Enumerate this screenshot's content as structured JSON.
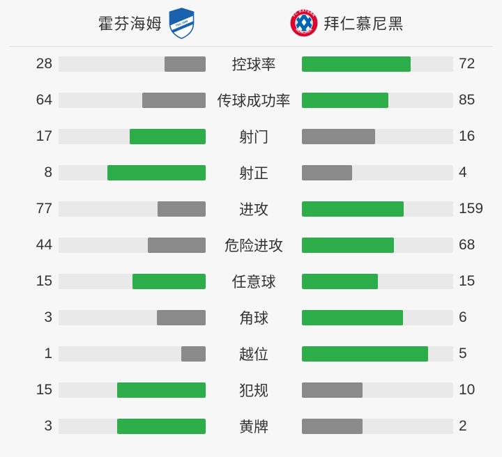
{
  "header": {
    "home_team": {
      "name": "霍芬海姆"
    },
    "away_team": {
      "name": "拜仁慕尼黑"
    }
  },
  "colors": {
    "win_fill": "#2dae4b",
    "lose_fill": "#8a8a8a",
    "track": "#e9e9ea",
    "background": "#f7f7f8",
    "text": "#333333",
    "divider": "#dddddd",
    "hoffenheim_blue": "#1961ac",
    "bayern_red": "#dc052d",
    "bayern_blue": "#0066b2"
  },
  "stats": [
    {
      "label": "控球率",
      "home": 28,
      "away": 72
    },
    {
      "label": "传球成功率",
      "home": 64,
      "away": 85
    },
    {
      "label": "射门",
      "home": 17,
      "away": 16
    },
    {
      "label": "射正",
      "home": 8,
      "away": 4
    },
    {
      "label": "进攻",
      "home": 77,
      "away": 159
    },
    {
      "label": "危险进攻",
      "home": 44,
      "away": 68
    },
    {
      "label": "任意球",
      "home": 15,
      "away": 15
    },
    {
      "label": "角球",
      "home": 3,
      "away": 6
    },
    {
      "label": "越位",
      "home": 1,
      "away": 5
    },
    {
      "label": "犯规",
      "home": 15,
      "away": 10
    },
    {
      "label": "黄牌",
      "home": 3,
      "away": 2
    }
  ],
  "chart_data": {
    "type": "bar",
    "title": "霍芬海姆 vs 拜仁慕尼黑",
    "categories": [
      "控球率",
      "传球成功率",
      "射门",
      "射正",
      "进攻",
      "危险进攻",
      "任意球",
      "角球",
      "越位",
      "犯规",
      "黄牌"
    ],
    "series": [
      {
        "name": "霍芬海姆",
        "values": [
          28,
          64,
          17,
          8,
          77,
          44,
          15,
          3,
          1,
          15,
          3
        ]
      },
      {
        "name": "拜仁慕尼黑",
        "values": [
          72,
          85,
          16,
          4,
          159,
          68,
          15,
          6,
          5,
          10,
          2
        ]
      }
    ],
    "layout": "paired horizontal bars; each fill width = value/(home+away); higher value colored green #2dae4b, lower colored gray #8a8a8a, ties both green; home bars grow right-to-left toward center, away bars grow left-to-right from center",
    "legend_position": "top header with club crests"
  }
}
